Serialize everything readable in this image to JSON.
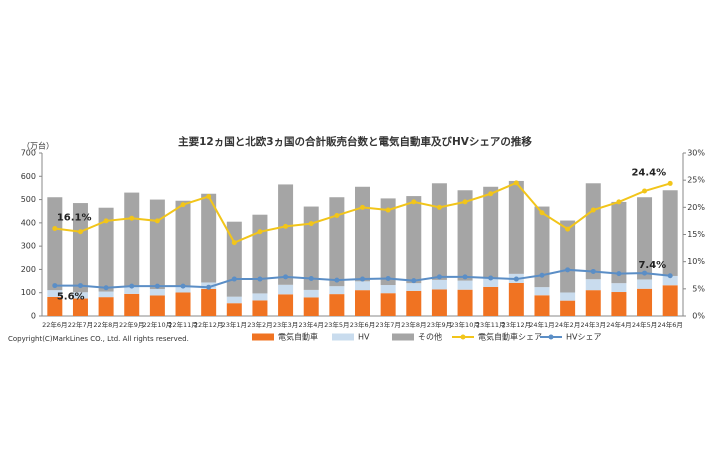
{
  "chart_data": {
    "type": "bar",
    "stacked": true,
    "title": "主要12ヵ国と北欧3ヵ国の合計販売台数と電気自動車及びHVシェアの推移",
    "y_label": "（万台）",
    "note": "Copyright(C)MarkLines CO., Ltd. All rights reserved.",
    "categories": [
      "22年6月",
      "22年7月",
      "22年8月",
      "22年9月",
      "22年10月",
      "22年11月",
      "22年12月",
      "23年1月",
      "23年2月",
      "23年3月",
      "23年4月",
      "23年5月",
      "23年6月",
      "23年7月",
      "23年8月",
      "23年9月",
      "23年10月",
      "23年11月",
      "23年12月",
      "24年1月",
      "24年2月",
      "24年3月",
      "24年4月",
      "24年5月",
      "24年6月"
    ],
    "ylim": [
      0,
      700
    ],
    "yticks": [
      0,
      100,
      200,
      300,
      400,
      500,
      600,
      700
    ],
    "y2lim": [
      0,
      30
    ],
    "y2ticks": [
      {
        "value": 0,
        "label": "0%"
      },
      {
        "value": 5,
        "label": "5%"
      },
      {
        "value": 10,
        "label": "10%"
      },
      {
        "value": 15,
        "label": "15%"
      },
      {
        "value": 20,
        "label": "20%"
      },
      {
        "value": 25,
        "label": "25%"
      },
      {
        "value": 30,
        "label": "30%"
      }
    ],
    "series": [
      {
        "name": "電気自動車",
        "type": "bar",
        "color": "#f07322",
        "values": [
          82,
          75,
          81,
          95,
          88,
          101,
          116,
          55,
          67,
          93,
          80,
          94,
          111,
          98,
          108,
          114,
          113,
          125,
          142,
          89,
          66,
          111,
          103,
          117,
          132
        ]
      },
      {
        "name": "HV",
        "type": "bar",
        "color": "#c9dcee",
        "values": [
          29,
          27,
          24,
          29,
          28,
          27,
          28,
          28,
          30,
          41,
          32,
          34,
          38,
          35,
          33,
          41,
          39,
          39,
          39,
          35,
          35,
          47,
          38,
          40,
          40
        ]
      },
      {
        "name": "その他",
        "type": "bar",
        "color": "#a5a5a5",
        "values": [
          399,
          383,
          360,
          406,
          384,
          367,
          381,
          322,
          338,
          431,
          358,
          382,
          406,
          372,
          374,
          415,
          388,
          391,
          399,
          346,
          309,
          412,
          349,
          353,
          368
        ]
      },
      {
        "name": "電気自動車シェア",
        "type": "line",
        "axis": "y2",
        "color": "#f2c51a",
        "values": [
          16.1,
          15.5,
          17.5,
          18,
          17.5,
          20.5,
          22,
          13.5,
          15.5,
          16.5,
          17,
          18.5,
          20,
          19.5,
          21,
          20,
          21,
          22.5,
          24.5,
          19,
          16,
          19.5,
          21,
          23,
          24.4
        ],
        "value_labels": [
          "16.1%",
          null,
          null,
          null,
          null,
          null,
          null,
          null,
          null,
          null,
          null,
          null,
          null,
          null,
          null,
          null,
          null,
          null,
          null,
          null,
          null,
          null,
          null,
          null,
          "24.4%"
        ]
      },
      {
        "name": "HVシェア",
        "type": "line",
        "axis": "y2",
        "color": "#5b8ec6",
        "values": [
          5.6,
          5.6,
          5.2,
          5.5,
          5.5,
          5.5,
          5.3,
          6.8,
          6.8,
          7.2,
          6.9,
          6.6,
          6.8,
          6.9,
          6.5,
          7.2,
          7.2,
          7.0,
          6.8,
          7.5,
          8.5,
          8.2,
          7.8,
          7.9,
          7.4
        ],
        "value_labels": [
          "5.6%",
          null,
          null,
          null,
          null,
          null,
          null,
          null,
          null,
          null,
          null,
          null,
          null,
          null,
          null,
          null,
          null,
          null,
          null,
          null,
          null,
          null,
          null,
          null,
          "7.4%"
        ]
      }
    ]
  }
}
